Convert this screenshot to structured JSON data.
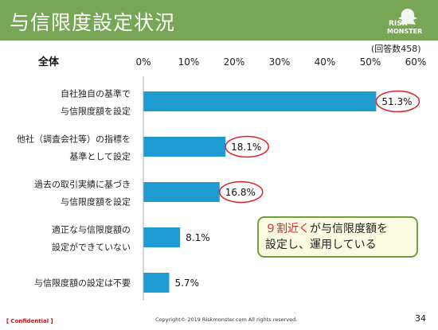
{
  "slide": {
    "title": "与信限度設定状況",
    "logo_text_top": "RISK",
    "logo_text_bottom": "MONSTER",
    "note": "(回答数458)",
    "callout_highlight": "９割近く",
    "callout_rest_line1": "が与信限度額を",
    "callout_line2": "設定し、運用している",
    "footer_confidential": "【 Confidential 】",
    "footer_copyright": "Copyright© 2019 Riskmonster.com All rights reserved.",
    "page_number": "34"
  },
  "colors": {
    "header": "#77a656",
    "bar": "#1e9bd0",
    "circle": "#e0202a",
    "callout_border": "#6f9f3f",
    "callout_bg": "#fbfbe2"
  },
  "chart_data": {
    "type": "bar",
    "orientation": "horizontal",
    "title": "全体",
    "xlim": [
      0,
      60
    ],
    "tick_step": 10,
    "tick_labels": [
      "0%",
      "10%",
      "20%",
      "30%",
      "40%",
      "50%",
      "60%"
    ],
    "grid": false,
    "categories": [
      [
        "自社独自の基準で",
        "与信限度額を設定"
      ],
      [
        "他社（調査会社等）の指標を",
        "基準として設定"
      ],
      [
        "過去の取引実績に基づき",
        "与信限度額を設定"
      ],
      [
        "適正な与信限度額の",
        "設定ができていない"
      ],
      [
        "与信限度額の設定は不要"
      ]
    ],
    "values": [
      51.3,
      18.1,
      16.8,
      8.1,
      5.7
    ],
    "value_labels": [
      "51.3%",
      "18.1%",
      "16.8%",
      "8.1%",
      "5.7%"
    ],
    "circled": [
      true,
      true,
      true,
      false,
      false
    ]
  }
}
